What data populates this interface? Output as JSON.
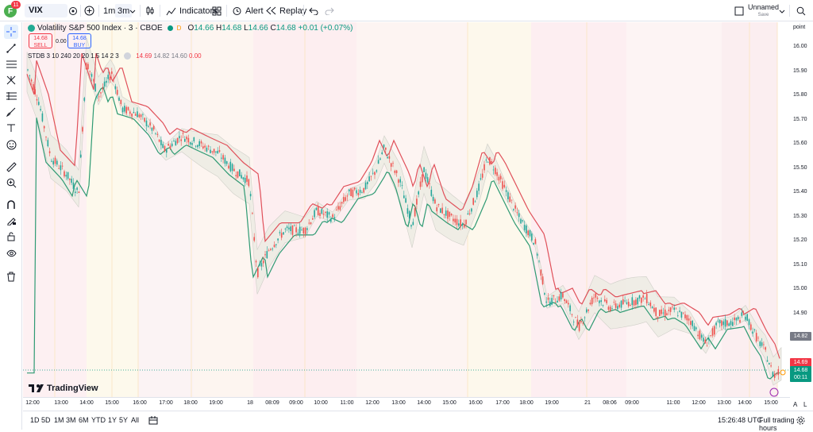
{
  "toolbar": {
    "avatar_letter": "F",
    "avatar_badge": "11",
    "symbol": "VIX",
    "interval_1m": "1m",
    "interval_3m": "3m",
    "indicators": "Indicators",
    "alert": "Alert",
    "replay": "Replay",
    "layout_name": "Unnamed",
    "layout_status": "Save"
  },
  "legend": {
    "title": "Volatility S&P 500 Index · 3 · CBOE",
    "o_label": "O",
    "o": "14.66",
    "h_label": "H",
    "h": "14.68",
    "l_label": "L",
    "l": "14.66",
    "c_label": "C",
    "c": "14.68",
    "change": "+0.01 (+0.07%)",
    "sell_price": "14.68",
    "sell_label": "SELL",
    "spread": "0.00",
    "buy_price": "14.68",
    "buy_label": "BUY",
    "indicator": "STDB 3 10 240 20 20 1.5 14 2 3",
    "ind_v1": "14.69",
    "ind_v2": "14.82",
    "ind_v3": "14.60",
    "ind_v4": "0.00"
  },
  "price_axis": {
    "unit": "point",
    "ticks": [
      "16.00",
      "15.90",
      "15.80",
      "15.70",
      "15.60",
      "15.50",
      "15.40",
      "15.30",
      "15.20",
      "15.10",
      "15.00",
      "14.90",
      "14.80",
      "14.70"
    ],
    "tag_upper": "14.82",
    "tag_last": "14.69",
    "tag_current": "14.68",
    "tag_timer": "00:11"
  },
  "time_axis": {
    "ticks": [
      "12:00",
      "13:00",
      "14:00",
      "15:00",
      "16:00",
      "17:00",
      "18:00",
      "19:00",
      "18",
      "08:09",
      "09:00",
      "10:00",
      "11:00",
      "12:00",
      "13:00",
      "14:00",
      "15:00",
      "16:00",
      "17:00",
      "18:00",
      "19:00",
      "21",
      "08:06",
      "09:00",
      "11:00",
      "12:00",
      "13:00",
      "14:00",
      "15:00"
    ]
  },
  "bottom": {
    "ranges": [
      "1D",
      "5D",
      "1M",
      "3M",
      "6M",
      "YTD",
      "1Y",
      "5Y",
      "All"
    ],
    "clock": "15:26:48 UTC",
    "session": "Full trading hours",
    "scale_auto": "A",
    "scale_log": "L"
  },
  "brand": "TradingView",
  "colors": {
    "up": "#26a69a",
    "down": "#ef5350",
    "line_red": "#e0505a",
    "line_green": "#2e9a73",
    "band": "#ecebe3"
  }
}
